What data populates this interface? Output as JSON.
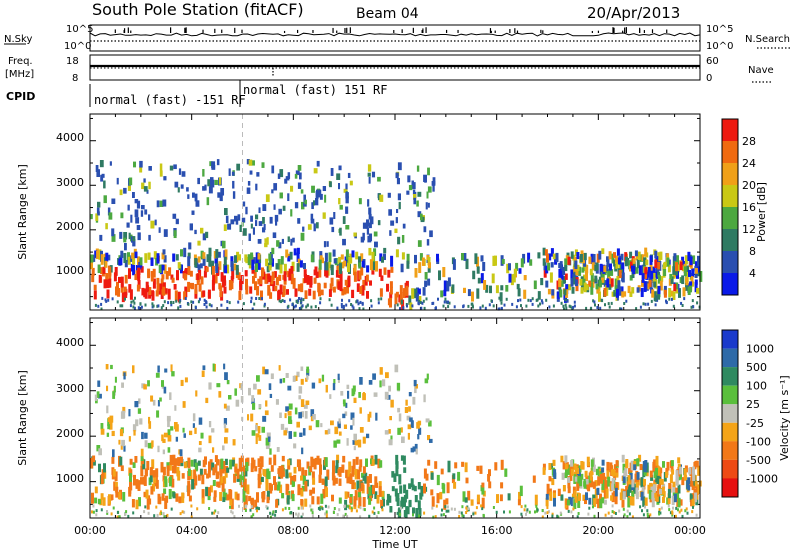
{
  "header": {
    "station": "South Pole Station (fitACF)",
    "beam": "Beam 04",
    "date": "20/Apr/2013"
  },
  "status_panels": {
    "nsky_label": "N.Sky",
    "nsky_ticks": [
      "10^5",
      "10^0"
    ],
    "nsearch_label": "N.Search",
    "nsearch_ticks": [
      "10^5",
      "10^0"
    ],
    "freq_label_1": "Freq.",
    "freq_label_2": "[MHz]",
    "freq_ticks": [
      "18",
      "8"
    ],
    "nave_label": "Nave",
    "nave_ticks": [
      "60",
      "0"
    ],
    "cpid_label": "CPID",
    "cpid_modes": [
      "normal (fast) -151 RF",
      "normal (fast) 151 RF"
    ]
  },
  "chart_data": [
    {
      "type": "heatmap",
      "name": "power",
      "ylabel": "Slant Range [km]",
      "xlabel": "",
      "y_ticks": [
        "1000",
        "2000",
        "3000",
        "4000"
      ],
      "ylim": [
        200,
        4600
      ],
      "xlim_hours": [
        0,
        24
      ],
      "colorbar_label": "Power [dB]",
      "colorbar_ticks": [
        "4",
        "8",
        "12",
        "16",
        "20",
        "24",
        "28"
      ],
      "colorbar_colors": [
        "#0a1ae8",
        "#2a4fb0",
        "#2f7a62",
        "#4ca840",
        "#c9c815",
        "#f0a018",
        "#f06a10",
        "#ee1a10"
      ]
    },
    {
      "type": "heatmap",
      "name": "velocity",
      "ylabel": "Slant Range [km]",
      "xlabel": "Time UT",
      "y_ticks": [
        "1000",
        "2000",
        "3000",
        "4000"
      ],
      "ylim": [
        200,
        4600
      ],
      "xlim_hours": [
        0,
        24
      ],
      "x_ticks": [
        "00:00",
        "04:00",
        "08:00",
        "12:00",
        "16:00",
        "20:00",
        "00:00"
      ],
      "colorbar_label": "Velocity [m s⁻¹]",
      "colorbar_ticks": [
        "1000",
        "500",
        "100",
        "25",
        "-25",
        "-100",
        "-500",
        "-1000"
      ],
      "colorbar_colors": [
        "#1a3acc",
        "#2e6aa8",
        "#2f8a60",
        "#5abf3c",
        "#c0c0b8",
        "#f4a418",
        "#f27818",
        "#ee4a14",
        "#e61010"
      ]
    }
  ]
}
